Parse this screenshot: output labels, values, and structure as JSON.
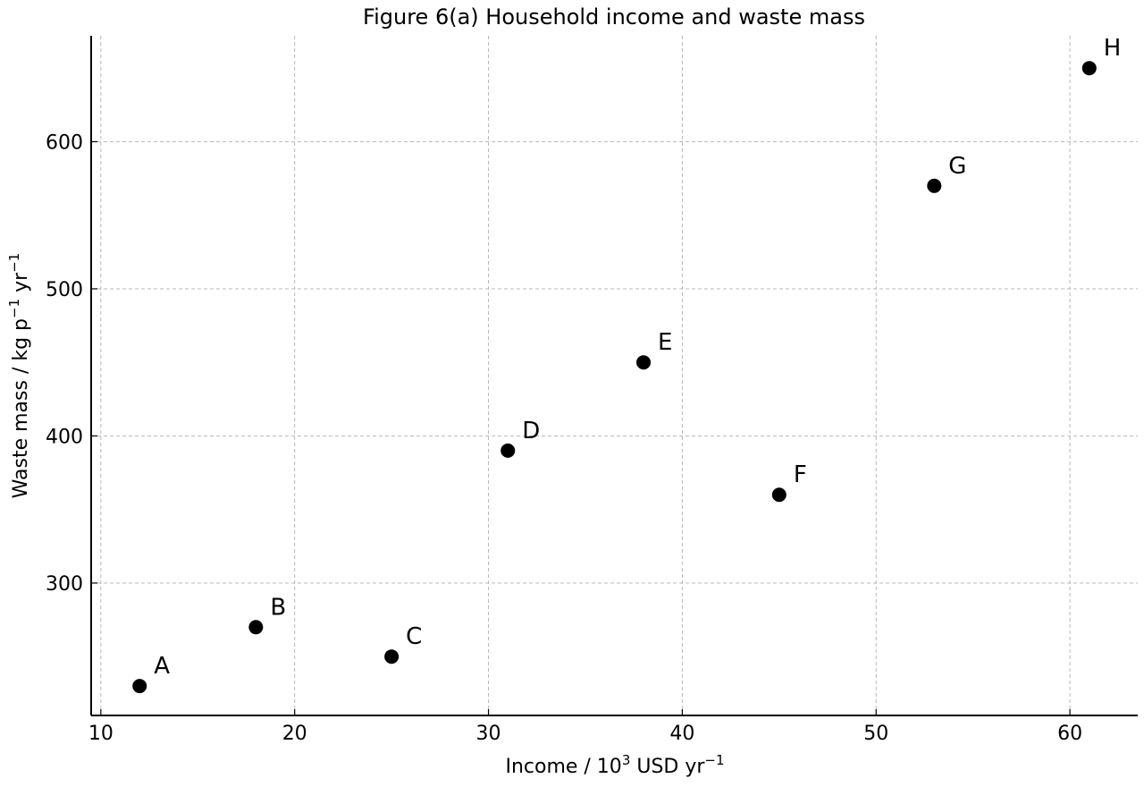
{
  "chart_data": {
    "type": "scatter",
    "title": "Figure 6(a) Household income and waste mass",
    "xlabel": {
      "pre": "Income / 10",
      "sup1": "3",
      "mid": " USD yr",
      "sup2": "−1"
    },
    "ylabel": {
      "pre": "Waste mass / kg p",
      "sup1": "−1",
      "mid": " yr",
      "sup2": "−1"
    },
    "xlim": [
      9.5,
      63.5
    ],
    "ylim": [
      210,
      672
    ],
    "xticks": [
      10,
      20,
      30,
      40,
      50,
      60
    ],
    "yticks": [
      300,
      400,
      500,
      600
    ],
    "grid": true,
    "marker_color": "#000000",
    "points": [
      {
        "label": "A",
        "x": 12,
        "y": 230
      },
      {
        "label": "B",
        "x": 18,
        "y": 270
      },
      {
        "label": "C",
        "x": 25,
        "y": 250
      },
      {
        "label": "D",
        "x": 31,
        "y": 390
      },
      {
        "label": "E",
        "x": 38,
        "y": 450
      },
      {
        "label": "F",
        "x": 45,
        "y": 360
      },
      {
        "label": "G",
        "x": 53,
        "y": 570
      },
      {
        "label": "H",
        "x": 61,
        "y": 650
      }
    ]
  }
}
